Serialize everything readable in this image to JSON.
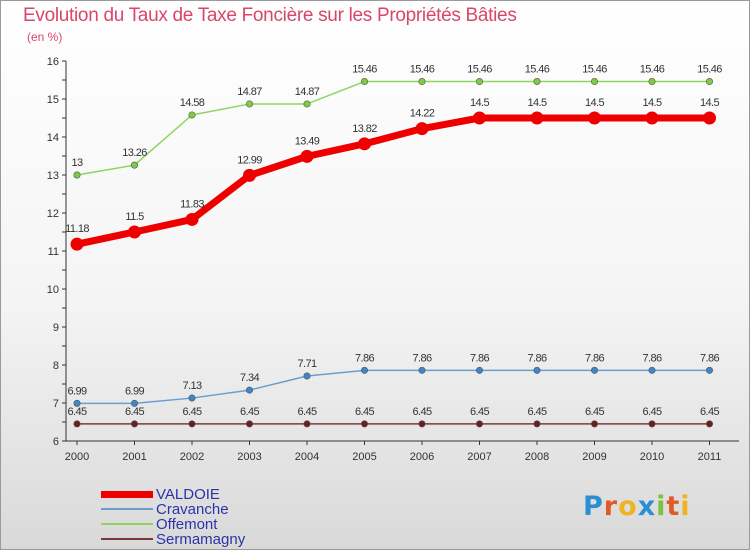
{
  "header": {
    "title": "Evolution du Taux de Taxe Foncière sur les Propriétés Bâties",
    "subtitle": "(en %)"
  },
  "logo": {
    "text": "Proxiti"
  },
  "chart_data": {
    "type": "line",
    "title": "Evolution du Taux de Taxe Foncière sur les Propriétés Bâties",
    "ylabel": "(en %)",
    "xlabel": "",
    "x": [
      "2000",
      "2001",
      "2002",
      "2003",
      "2004",
      "2005",
      "2006",
      "2007",
      "2008",
      "2009",
      "2010",
      "2011"
    ],
    "ylim": [
      6,
      16
    ],
    "yticks": [
      6,
      7,
      8,
      9,
      10,
      11,
      12,
      13,
      14,
      15,
      16
    ],
    "grid": false,
    "legend_position": "bottom-left",
    "series": [
      {
        "name": "VALDOIE",
        "color": "#ee0000",
        "values": [
          11.18,
          11.5,
          11.83,
          12.99,
          13.49,
          13.82,
          14.22,
          14.5,
          14.5,
          14.5,
          14.5,
          14.5
        ],
        "labels": [
          "11.18",
          "11.5",
          "11.83",
          "12.99",
          "13.49",
          "13.82",
          "14.22",
          "14.5",
          "14.5",
          "14.5",
          "14.5",
          "14.5"
        ]
      },
      {
        "name": "Cravanche",
        "color": "#6a9ed0",
        "values": [
          6.99,
          6.99,
          7.13,
          7.34,
          7.71,
          7.86,
          7.86,
          7.86,
          7.86,
          7.86,
          7.86,
          7.86
        ],
        "labels": [
          "6.99",
          "6.99",
          "7.13",
          "7.34",
          "7.71",
          "7.86",
          "7.86",
          "7.86",
          "7.86",
          "7.86",
          "7.86",
          "7.86"
        ]
      },
      {
        "name": "Offemont",
        "color": "#90d460",
        "values": [
          13,
          13.26,
          14.58,
          14.87,
          14.87,
          15.46,
          15.46,
          15.46,
          15.46,
          15.46,
          15.46,
          15.46
        ],
        "labels": [
          "13",
          "13.26",
          "14.58",
          "14.87",
          "14.87",
          "15.46",
          "15.46",
          "15.46",
          "15.46",
          "15.46",
          "15.46",
          "15.46"
        ]
      },
      {
        "name": "Sermamagny",
        "color": "#7a3a3a",
        "values": [
          6.45,
          6.45,
          6.45,
          6.45,
          6.45,
          6.45,
          6.45,
          6.45,
          6.45,
          6.45,
          6.45,
          6.45
        ],
        "labels": [
          "6.45",
          "6.45",
          "6.45",
          "6.45",
          "6.45",
          "6.45",
          "6.45",
          "6.45",
          "6.45",
          "6.45",
          "6.45",
          "6.45"
        ]
      }
    ]
  }
}
